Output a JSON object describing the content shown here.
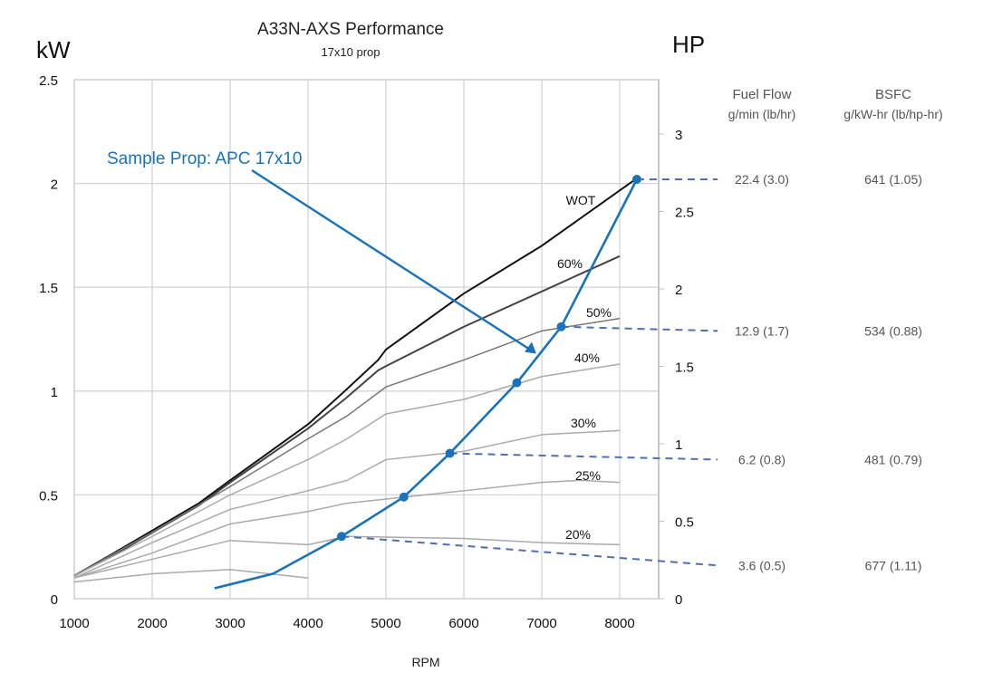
{
  "chart_data": {
    "type": "line",
    "title": "A33N-AXS Performance",
    "subtitle": "17x10 prop",
    "xlabel": "RPM",
    "ylabel_left": "kW",
    "ylabel_right": "HP",
    "xlim": [
      1000,
      8500
    ],
    "ylim_left": [
      0,
      2.5
    ],
    "ylim_right": [
      0,
      3.35
    ],
    "x_ticks": [
      "1000",
      "2000",
      "3000",
      "4000",
      "5000",
      "6000",
      "7000",
      "8000"
    ],
    "y_ticks_left": [
      "0",
      "0.5",
      "1",
      "1.5",
      "2",
      "2.5"
    ],
    "y_ticks_right": [
      "0",
      "0.5",
      "1",
      "1.5",
      "2",
      "2.5",
      "3"
    ],
    "grid": true,
    "series": [
      {
        "name": "WOT",
        "label": "WOT",
        "color": "#111111",
        "x": [
          1000,
          1600,
          2600,
          3000,
          4000,
          4500,
          4900,
          5000,
          6000,
          7000,
          8200
        ],
        "y": [
          0.11,
          0.24,
          0.46,
          0.57,
          0.84,
          1.01,
          1.15,
          1.2,
          1.47,
          1.7,
          2.02
        ]
      },
      {
        "name": "60%",
        "label": "60%",
        "color": "#444444",
        "x": [
          1000,
          1600,
          2600,
          3000,
          4000,
          4500,
          4900,
          5000,
          6000,
          7000,
          8000
        ],
        "y": [
          0.11,
          0.23,
          0.45,
          0.56,
          0.82,
          0.97,
          1.1,
          1.12,
          1.31,
          1.48,
          1.65
        ]
      },
      {
        "name": "50%",
        "label": "50%",
        "color": "#777777",
        "x": [
          1000,
          2000,
          3000,
          4000,
          4500,
          5000,
          6000,
          7000,
          8000
        ],
        "y": [
          0.11,
          0.32,
          0.54,
          0.77,
          0.88,
          1.02,
          1.15,
          1.29,
          1.35
        ]
      },
      {
        "name": "40%",
        "label": "40%",
        "color": "#aaaaaa",
        "x": [
          1000,
          2000,
          3000,
          4000,
          4500,
          5000,
          6000,
          7000,
          8000
        ],
        "y": [
          0.11,
          0.3,
          0.5,
          0.67,
          0.77,
          0.89,
          0.96,
          1.07,
          1.13
        ]
      },
      {
        "name": "30%",
        "label": "30%",
        "color": "#aaaaaa",
        "x": [
          1000,
          2000,
          3000,
          4000,
          4500,
          5000,
          6000,
          7000,
          8000
        ],
        "y": [
          0.1,
          0.27,
          0.43,
          0.52,
          0.57,
          0.67,
          0.71,
          0.79,
          0.81
        ]
      },
      {
        "name": "25%",
        "label": "25%",
        "color": "#aaaaaa",
        "x": [
          1000,
          2000,
          3000,
          4000,
          4500,
          5000,
          6000,
          7000,
          7500,
          8000
        ],
        "y": [
          0.1,
          0.22,
          0.36,
          0.42,
          0.46,
          0.48,
          0.52,
          0.56,
          0.57,
          0.56
        ]
      },
      {
        "name": "20%",
        "label": "20%",
        "color": "#aaaaaa",
        "x": [
          1000,
          2000,
          3000,
          4000,
          4500,
          6000,
          7000,
          8000
        ],
        "y": [
          0.1,
          0.19,
          0.28,
          0.26,
          0.3,
          0.29,
          0.27,
          0.26
        ]
      },
      {
        "name": "Idle",
        "label": "",
        "color": "#aaaaaa",
        "x": [
          1000,
          2000,
          3000,
          4000
        ],
        "y": [
          0.08,
          0.12,
          0.14,
          0.1
        ]
      },
      {
        "name": "Sample Prop: APC 17x10",
        "label": "Sample Prop: APC 17x10",
        "color": "#1a73b8",
        "x": [
          2800,
          3550,
          4430,
          5230,
          5820,
          6680,
          7250,
          8220
        ],
        "y": [
          0.05,
          0.12,
          0.3,
          0.49,
          0.7,
          1.04,
          1.31,
          2.02
        ],
        "markers_at": [
          4430,
          5230,
          5820,
          6680,
          7250,
          8220
        ]
      }
    ],
    "annotations": [
      {
        "text": "Sample Prop: APC 17x10",
        "color": "#1a73b8",
        "arrow_to": {
          "x": 6930,
          "y": 1.18
        }
      }
    ],
    "table": {
      "headers": [
        {
          "title": "Fuel Flow",
          "unit": "g/min (lb/hr)"
        },
        {
          "title": "BSFC",
          "unit": "g/kW-hr (lb/hp-hr)"
        }
      ],
      "rows": [
        {
          "from": {
            "x": 8220,
            "y": 2.02
          },
          "kw_at_label": 2.02,
          "fuel_flow": "22.4 (3.0)",
          "bsfc": "641 (1.05)"
        },
        {
          "from": {
            "x": 7250,
            "y": 1.31
          },
          "kw_at_label": 1.29,
          "fuel_flow": "12.9 (1.7)",
          "bsfc": "534 (0.88)"
        },
        {
          "from": {
            "x": 5820,
            "y": 0.7
          },
          "kw_at_label": 0.67,
          "fuel_flow": "6.2 (0.8)",
          "bsfc": "481 (0.79)"
        },
        {
          "from": {
            "x": 4430,
            "y": 0.3
          },
          "kw_at_label": 0.16,
          "fuel_flow": "3.6 (0.5)",
          "bsfc": "677 (1.11)"
        }
      ]
    }
  },
  "text": {
    "title": "A33N-AXS Performance",
    "subtitle": "17x10 prop",
    "ylabel_left": "kW",
    "ylabel_right": "HP",
    "xlabel": "RPM",
    "prop_label": "Sample Prop: APC 17x10",
    "fuel_header": "Fuel Flow",
    "fuel_unit": "g/min (lb/hr)",
    "bsfc_header": "BSFC",
    "bsfc_unit": "g/kW-hr (lb/hp-hr)"
  }
}
